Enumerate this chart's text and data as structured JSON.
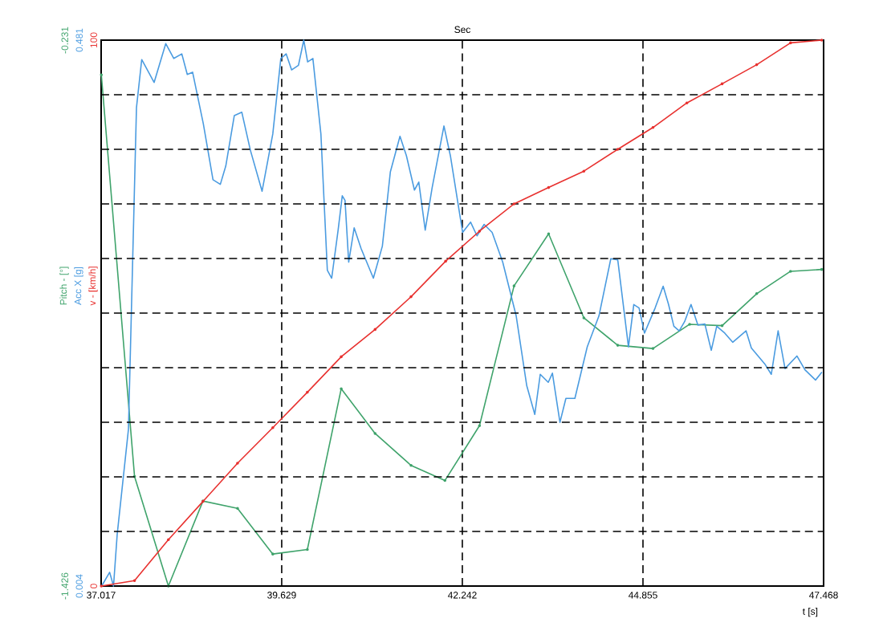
{
  "chart_data": {
    "type": "line",
    "title": "Sec",
    "xlabel": "t [s]",
    "ylabel": "Pitch - [°]",
    "y2label": "Acc X [g]",
    "y3label": "v - [km/h]",
    "xlim": [
      37.017,
      47.468
    ],
    "xticks": [
      37.017,
      39.629,
      42.242,
      44.855,
      47.468
    ],
    "ylim": [
      -1.426,
      -0.231
    ],
    "yticks": [
      -1.426,
      -0.231
    ],
    "y2lim": [
      0.004,
      0.481
    ],
    "y2ticks": [
      0.004,
      0.481
    ],
    "y3lim": [
      0,
      100
    ],
    "y3ticks": [
      0,
      {
        "value": 10,
        "label": null
      },
      {
        "value": 20,
        "label": null
      },
      {
        "value": 30,
        "label": null
      },
      {
        "value": 40,
        "label": null
      },
      {
        "value": 50,
        "label": null
      },
      {
        "value": 60,
        "label": null
      },
      {
        "value": 70,
        "label": null
      },
      {
        "value": 80,
        "label": null
      },
      {
        "value": 90,
        "label": null
      },
      100
    ],
    "grid": true,
    "line_style": "solid",
    "series": [
      {
        "color": "#3fa36b",
        "axis": "y",
        "marker": "circle",
        "x": [
          37.02,
          37.5,
          37.99,
          38.49,
          38.99,
          39.5,
          40.0,
          40.49,
          40.98,
          41.5,
          41.99,
          42.49,
          42.99,
          43.49,
          44.0,
          44.49,
          45.0,
          45.53,
          46.0,
          46.5,
          46.99,
          47.44
        ],
        "values": [
          -0.307,
          -1.186,
          -1.426,
          -1.24,
          -1.256,
          -1.356,
          -1.346,
          -0.994,
          -1.092,
          -1.162,
          -1.195,
          -1.075,
          -0.769,
          -0.655,
          -0.839,
          -0.899,
          -0.906,
          -0.853,
          -0.856,
          -0.786,
          -0.737,
          -0.733
        ]
      },
      {
        "color": "#4a9be0",
        "axis": "y2",
        "marker": "none",
        "x": [
          37.024,
          37.14,
          37.196,
          37.249,
          37.412,
          37.528,
          37.604,
          37.783,
          37.952,
          38.068,
          38.184,
          38.263,
          38.34,
          38.495,
          38.635,
          38.741,
          38.82,
          38.943,
          39.052,
          39.175,
          39.345,
          39.5,
          39.616,
          39.693,
          39.772,
          39.871,
          39.948,
          40.004,
          40.08,
          40.196,
          40.289,
          40.352,
          40.445,
          40.505,
          40.545,
          40.598,
          40.677,
          40.777,
          40.955,
          41.085,
          41.201,
          41.34,
          41.433,
          41.549,
          41.612,
          41.705,
          41.805,
          41.976,
          42.069,
          42.246,
          42.361,
          42.454,
          42.557,
          42.673,
          42.826,
          43.021,
          43.174,
          43.29,
          43.369,
          43.485,
          43.545,
          43.654,
          43.74,
          43.87,
          44.049,
          44.218,
          44.39,
          44.49,
          44.645,
          44.722,
          44.798,
          44.877,
          45.031,
          45.147,
          45.225,
          45.302,
          45.379,
          45.457,
          45.55,
          45.65,
          45.75,
          45.843,
          45.922,
          46.038,
          46.153,
          46.346,
          46.423,
          46.618,
          46.711,
          46.81,
          46.91,
          47.082,
          47.198,
          47.351,
          47.444
        ],
        "values": [
          0.004,
          0.016,
          0.004,
          0.049,
          0.141,
          0.422,
          0.464,
          0.444,
          0.478,
          0.465,
          0.469,
          0.451,
          0.453,
          0.408,
          0.359,
          0.355,
          0.371,
          0.415,
          0.418,
          0.385,
          0.349,
          0.399,
          0.465,
          0.469,
          0.455,
          0.459,
          0.481,
          0.462,
          0.465,
          0.399,
          0.28,
          0.273,
          0.315,
          0.345,
          0.341,
          0.287,
          0.317,
          0.299,
          0.273,
          0.301,
          0.366,
          0.397,
          0.38,
          0.35,
          0.357,
          0.315,
          0.352,
          0.406,
          0.38,
          0.313,
          0.322,
          0.31,
          0.32,
          0.313,
          0.287,
          0.24,
          0.179,
          0.154,
          0.189,
          0.182,
          0.19,
          0.147,
          0.168,
          0.168,
          0.213,
          0.24,
          0.29,
          0.289,
          0.213,
          0.25,
          0.247,
          0.225,
          0.247,
          0.266,
          0.25,
          0.231,
          0.227,
          0.235,
          0.25,
          0.232,
          0.233,
          0.21,
          0.231,
          0.225,
          0.217,
          0.227,
          0.212,
          0.198,
          0.189,
          0.227,
          0.194,
          0.205,
          0.193,
          0.184,
          0.191
        ]
      },
      {
        "color": "#e8312f",
        "axis": "y3",
        "marker": "circle",
        "x": [
          37.02,
          37.5,
          37.99,
          38.49,
          38.99,
          39.5,
          40.0,
          40.49,
          40.98,
          41.5,
          42.0,
          42.49,
          42.99,
          43.49,
          44.0,
          44.49,
          45.0,
          45.49,
          46.0,
          46.5,
          46.99,
          47.44
        ],
        "values": [
          0,
          1,
          8.5,
          15.5,
          22.5,
          29,
          35.5,
          42,
          47,
          53,
          59.5,
          65,
          70,
          73,
          76,
          80,
          84,
          88.5,
          92,
          95.5,
          99.5,
          100
        ]
      }
    ]
  }
}
